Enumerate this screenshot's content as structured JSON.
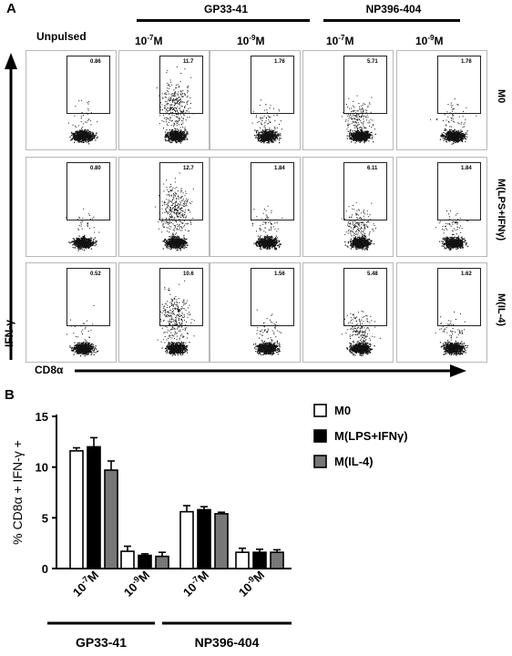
{
  "panel_a": {
    "letter": "A",
    "unpulsed": "Unpulsed",
    "peptides": [
      {
        "name": "GP33-41",
        "doses": [
          {
            "base": "10",
            "exp": "-7",
            "unit": "M"
          },
          {
            "base": "10",
            "exp": "-9",
            "unit": "M"
          }
        ]
      },
      {
        "name": "NP396-404",
        "doses": [
          {
            "base": "10",
            "exp": "-7",
            "unit": "M"
          },
          {
            "base": "10",
            "exp": "-9",
            "unit": "M"
          }
        ]
      }
    ],
    "rows": [
      {
        "label": "M0",
        "values": [
          "0.86",
          "11.7",
          "1.76",
          "5.71",
          "1.76"
        ]
      },
      {
        "label": "M(LPS+IFNγ)",
        "values": [
          "0.80",
          "12.7",
          "1.84",
          "6.11",
          "1.84"
        ]
      },
      {
        "label": "M(IL-4)",
        "values": [
          "0.52",
          "10.6",
          "1.56",
          "5.48",
          "1.62"
        ]
      }
    ],
    "y_axis_label": "IFN-γ",
    "x_axis_label": "CD8α"
  },
  "panel_b": {
    "letter": "B",
    "colors": {
      "M0": "#ffffff",
      "M(LPS+IFNγ)": "#000000",
      "M(IL-4)": "#777777"
    }
  },
  "chart_data": {
    "type": "bar",
    "ylabel": "% CD8α + IFN-γ +",
    "ylim": [
      0,
      15
    ],
    "yticks": [
      "0",
      "5",
      "10",
      "15"
    ],
    "categories": [
      {
        "base": "10",
        "exp": "-7",
        "unit": "M"
      },
      {
        "base": "10",
        "exp": "-9",
        "unit": "M"
      },
      {
        "base": "10",
        "exp": "-7",
        "unit": "M"
      },
      {
        "base": "10",
        "exp": "-9",
        "unit": "M"
      }
    ],
    "groups": [
      {
        "label": "GP33-41",
        "categories": [
          0,
          1
        ]
      },
      {
        "label": "NP396-404",
        "categories": [
          2,
          3
        ]
      }
    ],
    "series": [
      {
        "name": "M0",
        "values": [
          11.6,
          1.7,
          5.6,
          1.6
        ],
        "errors": [
          0.3,
          0.5,
          0.6,
          0.4
        ]
      },
      {
        "name": "M(LPS+IFNγ)",
        "values": [
          12.0,
          1.3,
          5.8,
          1.6
        ],
        "errors": [
          0.9,
          0.15,
          0.3,
          0.3
        ]
      },
      {
        "name": "M(IL-4)",
        "values": [
          9.7,
          1.2,
          5.4,
          1.6
        ],
        "errors": [
          0.9,
          0.4,
          0.15,
          0.25
        ]
      }
    ],
    "legend_position": "top-right"
  }
}
